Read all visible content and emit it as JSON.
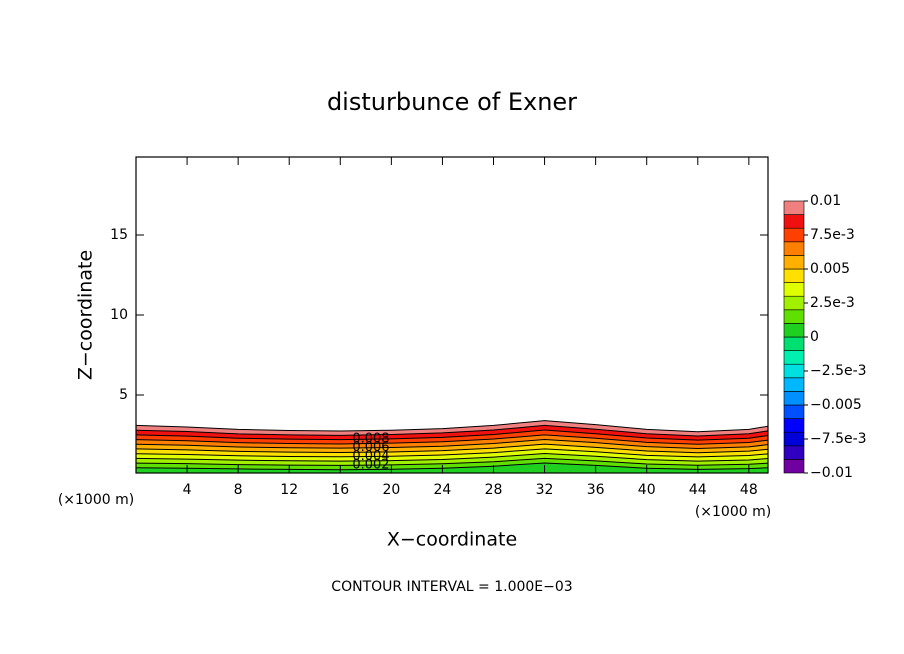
{
  "chart_data": {
    "type": "contour",
    "title": "disturbunce of Exner",
    "xlabel": "X−coordinate",
    "ylabel": "Z−coordinate",
    "x_unit": "(×1000 m)",
    "z_unit": "(×1000 m)",
    "footer": "CONTOUR INTERVAL = 1.000E−03",
    "xlim": [
      0,
      49.5
    ],
    "ylim": [
      0.125,
      19.875
    ],
    "xticks": [
      4,
      8,
      12,
      16,
      20,
      24,
      28,
      32,
      36,
      40,
      44,
      48
    ],
    "yticks": [
      5,
      10,
      15
    ],
    "x": [
      0,
      4,
      8,
      12,
      16,
      20,
      24,
      28,
      32,
      36,
      40,
      44,
      48,
      49.5
    ],
    "contours": [
      {
        "level": 0.001,
        "z": [
          0.45,
          0.42,
          0.38,
          0.35,
          0.33,
          0.36,
          0.42,
          0.55,
          0.75,
          0.6,
          0.42,
          0.35,
          0.4,
          0.45
        ]
      },
      {
        "level": 0.002,
        "z": [
          0.74,
          0.71,
          0.65,
          0.62,
          0.6,
          0.63,
          0.7,
          0.83,
          1.04,
          0.88,
          0.69,
          0.61,
          0.67,
          0.74
        ]
      },
      {
        "level": 0.003,
        "z": [
          1.04,
          0.99,
          0.93,
          0.89,
          0.87,
          0.9,
          0.97,
          1.12,
          1.34,
          1.17,
          0.96,
          0.87,
          0.94,
          1.03
        ]
      },
      {
        "level": 0.004,
        "z": [
          1.33,
          1.28,
          1.2,
          1.16,
          1.14,
          1.17,
          1.25,
          1.4,
          1.63,
          1.45,
          1.23,
          1.13,
          1.22,
          1.32
        ]
      },
      {
        "level": 0.005,
        "z": [
          1.63,
          1.57,
          1.48,
          1.43,
          1.41,
          1.44,
          1.52,
          1.68,
          1.93,
          1.73,
          1.5,
          1.39,
          1.49,
          1.61
        ]
      },
      {
        "level": 0.006,
        "z": [
          1.92,
          1.86,
          1.75,
          1.7,
          1.68,
          1.72,
          1.8,
          1.97,
          2.22,
          2.02,
          1.77,
          1.66,
          1.76,
          1.9
        ]
      },
      {
        "level": 0.007,
        "z": [
          2.21,
          2.14,
          2.02,
          1.97,
          1.94,
          1.99,
          2.08,
          2.25,
          2.51,
          2.3,
          2.04,
          1.92,
          2.03,
          2.18
        ]
      },
      {
        "level": 0.008,
        "z": [
          2.51,
          2.43,
          2.3,
          2.24,
          2.21,
          2.26,
          2.35,
          2.53,
          2.81,
          2.58,
          2.31,
          2.18,
          2.3,
          2.47
        ]
      },
      {
        "level": 0.009,
        "z": [
          2.8,
          2.72,
          2.57,
          2.51,
          2.48,
          2.53,
          2.63,
          2.81,
          3.1,
          2.86,
          2.58,
          2.44,
          2.58,
          2.76
        ]
      },
      {
        "level": 0.01,
        "z": [
          3.1,
          3.0,
          2.85,
          2.78,
          2.75,
          2.8,
          2.9,
          3.1,
          3.4,
          3.15,
          2.85,
          2.7,
          2.85,
          3.05
        ]
      }
    ],
    "contour_labels": [
      0.008,
      0.006,
      0.004,
      0.002
    ],
    "colorbar": {
      "lim": [
        -0.01,
        0.01
      ],
      "colors": [
        "#7000a0",
        "#3000c0",
        "#0000d8",
        "#0000ff",
        "#0050ff",
        "#0090ff",
        "#00b8ff",
        "#00e0e0",
        "#00f0b0",
        "#00e070",
        "#20d020",
        "#60e000",
        "#a0f000",
        "#e0ff00",
        "#ffe000",
        "#ffb000",
        "#ff8000",
        "#ff4000",
        "#f01010",
        "#f08080"
      ],
      "ticks": [
        0.01,
        {
          "value": 0.0075,
          "label": "7.5e-3"
        },
        0.005,
        {
          "value": 0.0025,
          "label": "2.5e-3"
        },
        0,
        {
          "value": -0.0025,
          "label": "−2.5e-3"
        },
        {
          "value": -0.005,
          "label": "−0.005"
        },
        {
          "value": -0.0075,
          "label": "−7.5e-3"
        },
        {
          "value": -0.01,
          "label": "−0.01"
        }
      ]
    }
  }
}
